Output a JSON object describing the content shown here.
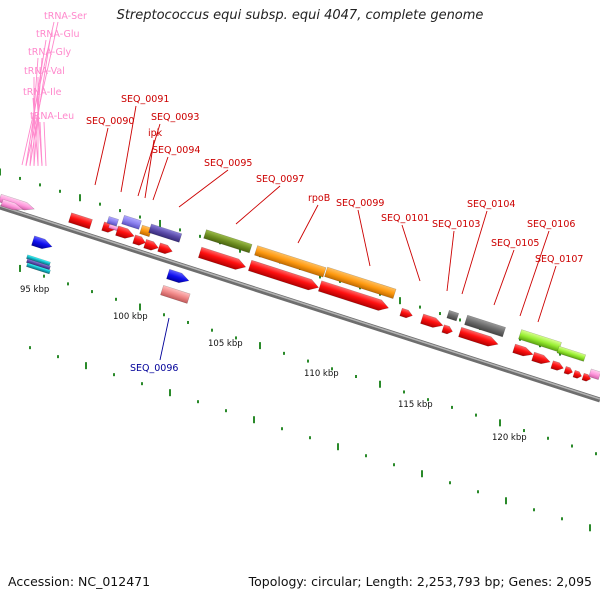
{
  "title": "Streptococcus equi subsp. equi 4047, complete genome",
  "footer": {
    "accession": "Accession: NC_012471",
    "topology": "Topology: circular; Length: 2,253,793 bp; Genes: 2,095"
  },
  "colors": {
    "backbone": "#8c8c8c",
    "tick": "#2a8a2a",
    "cds_red": "#ff1a1a",
    "label_red": "#cc0000",
    "label_blue": "#000099",
    "label_pink": "#ff88cc"
  },
  "scale_labels": [
    "95 kbp",
    "100 kbp",
    "105 kbp",
    "110 kbp",
    "115 kbp",
    "120 kbp"
  ],
  "trna_labels": [
    "tRNA-Ser",
    "tRNA-Glu",
    "tRNA-Gly",
    "tRNA-Val",
    "tRNA-Ile",
    "tRNA-Leu"
  ],
  "red_labels": [
    "SEQ_0090",
    "SEQ_0091",
    "SEQ_0093",
    "ipk",
    "SEQ_0094",
    "SEQ_0095",
    "SEQ_0097",
    "rpoB",
    "SEQ_0099",
    "SEQ_0101",
    "SEQ_0103",
    "SEQ_0104",
    "SEQ_0105",
    "SEQ_0106",
    "SEQ_0107"
  ],
  "blue_labels": [
    "SEQ_0096"
  ]
}
